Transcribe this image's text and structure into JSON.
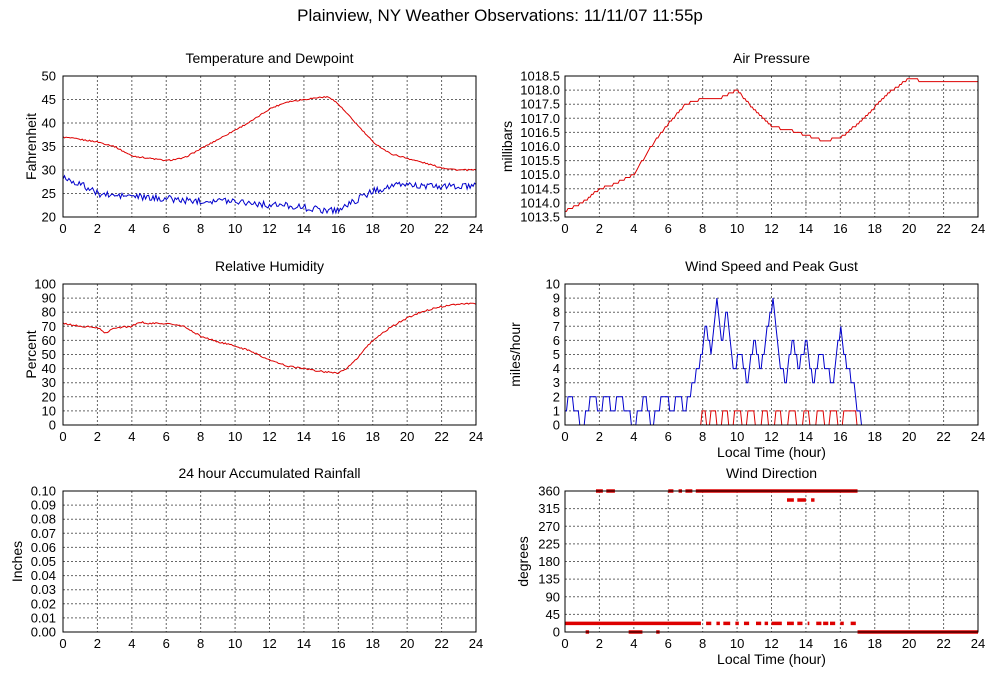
{
  "page": {
    "title": "Plainview, NY Weather Observations: 11/11/07 11:55p"
  },
  "colors": {
    "red": "#dd0000",
    "blue": "#0000cc",
    "grid": "#666666"
  },
  "chart_data": [
    {
      "id": "temp",
      "type": "line",
      "title": "Temperature and Dewpoint",
      "xlabel": "",
      "ylabel": "Fahrenheit",
      "xlim": [
        0,
        24
      ],
      "ylim": [
        20,
        50
      ],
      "xticks": [
        "0",
        "2",
        "4",
        "6",
        "8",
        "10",
        "12",
        "14",
        "16",
        "18",
        "20",
        "22",
        "24"
      ],
      "yticks": [
        "20",
        "25",
        "30",
        "35",
        "40",
        "45",
        "50"
      ],
      "grid": true,
      "series": [
        {
          "color": "#dd0000",
          "noise": 0.15,
          "points": [
            [
              0,
              37
            ],
            [
              1,
              36.5
            ],
            [
              2,
              36
            ],
            [
              3,
              35
            ],
            [
              4,
              33
            ],
            [
              5,
              32.5
            ],
            [
              6,
              32
            ],
            [
              7,
              32.5
            ],
            [
              8,
              34.5
            ],
            [
              9,
              36.5
            ],
            [
              10,
              38.5
            ],
            [
              11,
              40.5
            ],
            [
              12,
              43
            ],
            [
              13,
              44.5
            ],
            [
              14,
              45
            ],
            [
              15,
              45.5
            ],
            [
              15.5,
              45.5
            ],
            [
              16,
              44
            ],
            [
              17,
              40
            ],
            [
              18,
              36
            ],
            [
              19,
              33.5
            ],
            [
              20,
              32.5
            ],
            [
              21,
              31.5
            ],
            [
              22,
              30.5
            ],
            [
              23,
              30
            ],
            [
              24,
              30
            ]
          ]
        },
        {
          "color": "#0000cc",
          "noise": 0.7,
          "points": [
            [
              0,
              28.5
            ],
            [
              1,
              27
            ],
            [
              2,
              25
            ],
            [
              3,
              24.5
            ],
            [
              4,
              24.5
            ],
            [
              5,
              24
            ],
            [
              6,
              24
            ],
            [
              7,
              23.5
            ],
            [
              8,
              23.5
            ],
            [
              9,
              23.5
            ],
            [
              10,
              23.5
            ],
            [
              11,
              23
            ],
            [
              12,
              22.5
            ],
            [
              13,
              22.5
            ],
            [
              14,
              22
            ],
            [
              15,
              21.5
            ],
            [
              16,
              21.5
            ],
            [
              17,
              23.5
            ],
            [
              18,
              25.5
            ],
            [
              19,
              26.5
            ],
            [
              20,
              27
            ],
            [
              21,
              26.5
            ],
            [
              22,
              26.5
            ],
            [
              23,
              26.5
            ],
            [
              24,
              26.5
            ]
          ]
        }
      ]
    },
    {
      "id": "pressure",
      "type": "line",
      "title": "Air Pressure",
      "xlabel": "",
      "ylabel": "millibars",
      "xlim": [
        0,
        24
      ],
      "ylim": [
        1013.5,
        1018.5
      ],
      "xticks": [
        "0",
        "2",
        "4",
        "6",
        "8",
        "10",
        "12",
        "14",
        "16",
        "18",
        "20",
        "22",
        "24"
      ],
      "yticks": [
        "1013.5",
        "1014.0",
        "1014.5",
        "1015.0",
        "1015.5",
        "1016.0",
        "1016.5",
        "1017.0",
        "1017.5",
        "1018.0",
        "1018.5"
      ],
      "grid": true,
      "series": [
        {
          "color": "#dd0000",
          "step": 0.1,
          "points": [
            [
              0,
              1013.7
            ],
            [
              1,
              1014.0
            ],
            [
              2,
              1014.5
            ],
            [
              3,
              1014.7
            ],
            [
              4,
              1015.0
            ],
            [
              5,
              1016.0
            ],
            [
              6,
              1016.8
            ],
            [
              7,
              1017.5
            ],
            [
              8,
              1017.7
            ],
            [
              9,
              1017.7
            ],
            [
              10,
              1018.0
            ],
            [
              11,
              1017.3
            ],
            [
              12,
              1016.7
            ],
            [
              13,
              1016.6
            ],
            [
              14,
              1016.4
            ],
            [
              15,
              1016.2
            ],
            [
              16,
              1016.3
            ],
            [
              17,
              1016.8
            ],
            [
              18,
              1017.4
            ],
            [
              19,
              1018.0
            ],
            [
              20,
              1018.4
            ],
            [
              21,
              1018.3
            ],
            [
              22,
              1018.3
            ],
            [
              23,
              1018.3
            ],
            [
              24,
              1018.3
            ]
          ]
        }
      ]
    },
    {
      "id": "humidity",
      "type": "line",
      "title": "Relative Humidity",
      "xlabel": "",
      "ylabel": "Percent",
      "xlim": [
        0,
        24
      ],
      "ylim": [
        0,
        100
      ],
      "xticks": [
        "0",
        "2",
        "4",
        "6",
        "8",
        "10",
        "12",
        "14",
        "16",
        "18",
        "20",
        "22",
        "24"
      ],
      "yticks": [
        "0",
        "10",
        "20",
        "30",
        "40",
        "50",
        "60",
        "70",
        "80",
        "90",
        "100"
      ],
      "grid": true,
      "series": [
        {
          "color": "#dd0000",
          "noise": 0.6,
          "points": [
            [
              0,
              72
            ],
            [
              1,
              70
            ],
            [
              2,
              69
            ],
            [
              2.5,
              65
            ],
            [
              3,
              69
            ],
            [
              4,
              70
            ],
            [
              4.5,
              73
            ],
            [
              5,
              72
            ],
            [
              6,
              72
            ],
            [
              7,
              70
            ],
            [
              8,
              63
            ],
            [
              9,
              59
            ],
            [
              10,
              56
            ],
            [
              11,
              52
            ],
            [
              12,
              46
            ],
            [
              13,
              42
            ],
            [
              14,
              40
            ],
            [
              15,
              38
            ],
            [
              16,
              37
            ],
            [
              16.5,
              40
            ],
            [
              17,
              46
            ],
            [
              18,
              60
            ],
            [
              19,
              69
            ],
            [
              20,
              76
            ],
            [
              21,
              81
            ],
            [
              22,
              84
            ],
            [
              23,
              86
            ],
            [
              24,
              86
            ]
          ]
        }
      ]
    },
    {
      "id": "wind-speed",
      "type": "line",
      "title": "Wind Speed and Peak Gust",
      "xlabel": "Local Time (hour)",
      "ylabel": "miles/hour",
      "xlim": [
        0,
        24
      ],
      "ylim": [
        0,
        10
      ],
      "xticks": [
        "0",
        "2",
        "4",
        "6",
        "8",
        "10",
        "12",
        "14",
        "16",
        "18",
        "20",
        "22",
        "24"
      ],
      "yticks": [
        "0",
        "1",
        "2",
        "3",
        "4",
        "5",
        "6",
        "7",
        "8",
        "9",
        "10"
      ],
      "grid": true,
      "series": [
        {
          "color": "#0000cc",
          "step": 1,
          "points": [
            [
              0,
              1
            ],
            [
              0.3,
              2
            ],
            [
              0.6,
              1
            ],
            [
              1,
              0
            ],
            [
              1.3,
              1
            ],
            [
              1.6,
              2
            ],
            [
              2,
              1
            ],
            [
              2.4,
              2
            ],
            [
              2.8,
              1
            ],
            [
              3.2,
              2
            ],
            [
              3.6,
              1
            ],
            [
              4,
              0
            ],
            [
              4.3,
              1
            ],
            [
              4.7,
              2
            ],
            [
              5,
              0
            ],
            [
              5.3,
              1
            ],
            [
              5.8,
              2
            ],
            [
              6.2,
              1
            ],
            [
              6.6,
              2
            ],
            [
              7,
              1
            ],
            [
              7.4,
              3
            ],
            [
              7.8,
              4
            ],
            [
              8.2,
              7
            ],
            [
              8.5,
              5
            ],
            [
              8.8,
              9
            ],
            [
              9.1,
              6
            ],
            [
              9.4,
              8
            ],
            [
              9.8,
              4
            ],
            [
              10.2,
              5
            ],
            [
              10.6,
              3
            ],
            [
              11,
              6
            ],
            [
              11.4,
              4
            ],
            [
              11.8,
              7
            ],
            [
              12.1,
              9
            ],
            [
              12.4,
              5
            ],
            [
              12.8,
              3
            ],
            [
              13.2,
              6
            ],
            [
              13.6,
              4
            ],
            [
              14,
              6
            ],
            [
              14.4,
              3
            ],
            [
              14.8,
              5
            ],
            [
              15.2,
              4
            ],
            [
              15.6,
              3
            ],
            [
              16,
              7
            ],
            [
              16.4,
              4
            ],
            [
              16.8,
              3
            ],
            [
              17,
              1
            ],
            [
              17.3,
              0
            ],
            [
              24,
              0
            ]
          ]
        },
        {
          "color": "#dd0000",
          "step": 1,
          "points": [
            [
              0,
              0
            ],
            [
              7.8,
              0
            ],
            [
              8,
              1
            ],
            [
              8.3,
              0
            ],
            [
              8.6,
              1
            ],
            [
              9,
              0
            ],
            [
              9.3,
              1
            ],
            [
              9.7,
              0
            ],
            [
              10,
              1
            ],
            [
              10.4,
              0
            ],
            [
              10.8,
              1
            ],
            [
              11.2,
              0
            ],
            [
              11.6,
              1
            ],
            [
              12,
              0
            ],
            [
              12.4,
              1
            ],
            [
              12.8,
              0
            ],
            [
              13.2,
              1
            ],
            [
              13.6,
              0
            ],
            [
              14,
              1
            ],
            [
              14.4,
              0
            ],
            [
              14.8,
              1
            ],
            [
              15.2,
              0
            ],
            [
              15.6,
              1
            ],
            [
              16,
              0
            ],
            [
              16.4,
              1
            ],
            [
              16.8,
              1
            ],
            [
              17,
              0
            ],
            [
              24,
              0
            ]
          ]
        }
      ]
    },
    {
      "id": "rainfall",
      "type": "line",
      "title": "24 hour Accumulated Rainfall",
      "xlabel": "",
      "ylabel": "Inches",
      "xlim": [
        0,
        24
      ],
      "ylim": [
        0,
        0.1
      ],
      "xticks": [
        "0",
        "2",
        "4",
        "6",
        "8",
        "10",
        "12",
        "14",
        "16",
        "18",
        "20",
        "22",
        "24"
      ],
      "yticks": [
        "0.00",
        "0.01",
        "0.02",
        "0.03",
        "0.04",
        "0.05",
        "0.06",
        "0.07",
        "0.08",
        "0.09",
        "0.10"
      ],
      "grid": true,
      "series": [
        {
          "color": "#dd0000",
          "points": [
            [
              0,
              0
            ],
            [
              24,
              0
            ]
          ]
        }
      ]
    },
    {
      "id": "wind-direction",
      "type": "scatter",
      "title": "Wind Direction",
      "xlabel": "Local Time (hour)",
      "ylabel": "degrees",
      "xlim": [
        0,
        24
      ],
      "ylim": [
        0,
        360
      ],
      "xticks": [
        "0",
        "2",
        "4",
        "6",
        "8",
        "10",
        "12",
        "14",
        "16",
        "18",
        "20",
        "22",
        "24"
      ],
      "yticks": [
        "0",
        "45",
        "90",
        "135",
        "180",
        "225",
        "270",
        "315",
        "360"
      ],
      "grid": true,
      "segments": [
        {
          "y": 360,
          "ranges": [
            [
              1.8,
              2.2
            ],
            [
              2.4,
              2.9
            ],
            [
              6.0,
              6.3
            ],
            [
              6.6,
              6.8
            ],
            [
              7.0,
              7.4
            ],
            [
              7.6,
              17.0
            ]
          ]
        },
        {
          "y": 337,
          "ranges": [
            [
              12.9,
              13.3
            ],
            [
              13.5,
              14.0
            ],
            [
              14.3,
              14.5
            ]
          ]
        },
        {
          "y": 22,
          "ranges": [
            [
              0,
              7.9
            ],
            [
              8.2,
              8.5
            ],
            [
              8.8,
              9.0
            ],
            [
              9.2,
              9.6
            ],
            [
              9.9,
              10.1
            ],
            [
              10.4,
              10.7
            ],
            [
              11.1,
              11.4
            ],
            [
              11.6,
              11.8
            ],
            [
              12.0,
              12.6
            ],
            [
              12.9,
              13.3
            ],
            [
              13.5,
              13.8
            ],
            [
              14.1,
              14.2
            ],
            [
              14.6,
              14.9
            ],
            [
              15.0,
              15.3
            ],
            [
              15.4,
              15.7
            ],
            [
              16.0,
              16.2
            ],
            [
              16.6,
              16.9
            ]
          ]
        },
        {
          "y": 0,
          "ranges": [
            [
              1.2,
              1.4
            ],
            [
              3.7,
              4.5
            ],
            [
              5.3,
              5.5
            ],
            [
              17.0,
              24.0
            ]
          ]
        }
      ]
    }
  ]
}
